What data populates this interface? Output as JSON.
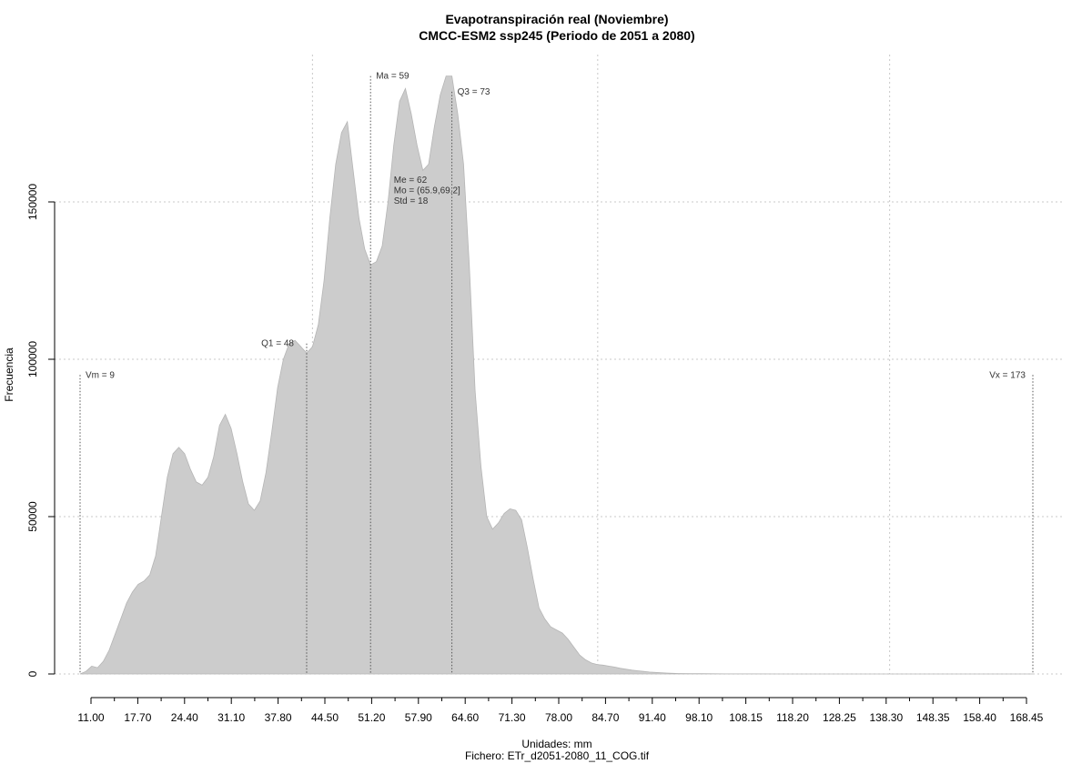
{
  "chart_data": {
    "type": "area",
    "title": "Evapotranspiración real (Noviembre)",
    "subtitle": "CMCC-ESM2 ssp245 (Periodo de 2051 a 2080)",
    "xlabel": "Unidades: mm",
    "caption": "Fichero: ETr_d2051-2080_11_COG.tif",
    "ylabel": "Frecuencia",
    "xlim": [
      7,
      175
    ],
    "ylim": [
      0,
      190000
    ],
    "grid": true,
    "fill_color": "#cccccc",
    "x_ticks": [
      "11.00",
      "17.70",
      "24.40",
      "31.10",
      "37.80",
      "44.50",
      "51.20",
      "57.90",
      "64.60",
      "71.30",
      "78.00",
      "84.70",
      "91.40",
      "98.10",
      "108.15",
      "118.20",
      "128.25",
      "138.30",
      "148.35",
      "158.40",
      "168.45"
    ],
    "y_ticks": [
      "0",
      "50000",
      "100000",
      "150000"
    ],
    "x_grid": [
      49,
      98.1,
      148.35
    ],
    "series": [
      {
        "x": [
          9,
          10,
          11,
          12,
          13,
          14,
          15,
          16,
          17,
          18,
          19,
          20,
          21,
          22,
          23,
          24,
          25,
          26,
          27,
          28,
          29,
          30,
          31,
          32,
          33,
          34,
          35,
          36,
          37,
          38,
          39,
          40,
          41,
          42,
          43,
          44,
          45,
          46,
          47,
          48,
          49,
          50,
          51,
          52,
          53,
          54,
          55,
          56,
          57,
          58,
          59,
          60,
          61,
          62,
          63,
          64,
          65,
          66,
          67,
          68,
          69,
          70,
          71,
          72,
          73,
          74,
          75,
          76,
          77,
          78,
          79,
          80,
          81,
          82,
          83,
          84,
          85,
          86,
          87,
          88,
          89,
          90,
          91,
          92,
          93,
          94,
          95,
          96,
          97,
          98,
          99,
          100,
          101,
          102,
          103,
          104,
          105,
          106,
          107,
          108,
          109,
          110,
          111,
          112,
          114,
          116,
          118,
          120,
          125,
          130,
          140,
          150,
          160,
          170,
          173
        ],
        "y": [
          0,
          800,
          2500,
          2000,
          4000,
          7500,
          12500,
          17500,
          22500,
          26000,
          28500,
          29500,
          31500,
          37500,
          50000,
          62500,
          70000,
          72000,
          70000,
          65000,
          61000,
          60000,
          62500,
          69000,
          79000,
          82500,
          78000,
          70000,
          61000,
          54000,
          52000,
          55000,
          64000,
          77000,
          91000,
          100000,
          105000,
          106000,
          104000,
          102000,
          104000,
          111000,
          125000,
          145000,
          162000,
          172000,
          175500,
          160000,
          145000,
          135000,
          130000,
          131000,
          136000,
          150000,
          168000,
          182000,
          186000,
          178000,
          168000,
          160000,
          162000,
          174000,
          184000,
          190000,
          190000,
          178000,
          162000,
          130000,
          90000,
          66000,
          50000,
          46000,
          48000,
          51000,
          52500,
          52000,
          49000,
          40000,
          30000,
          21000,
          17500,
          15000,
          14000,
          13000,
          11000,
          8500,
          6000,
          4500,
          3500,
          3000,
          2800,
          2500,
          2200,
          1800,
          1500,
          1200,
          1000,
          800,
          600,
          500,
          400,
          300,
          200,
          150,
          100,
          80,
          50,
          30,
          20,
          10,
          5,
          0,
          0,
          0,
          0
        ]
      }
    ],
    "annotations": [
      {
        "label": "Vm = 9",
        "x": 9,
        "y": 95000
      },
      {
        "label": "Q1 = 48",
        "x": 48,
        "y": 105000
      },
      {
        "label": "Ma = 59",
        "x": 59,
        "y": 190000
      },
      {
        "label": "Q3 = 73",
        "x": 73,
        "y": 185000
      },
      {
        "label": "Vx = 173",
        "x": 173,
        "y": 95000
      },
      {
        "label_lines": [
          "Me = 62",
          "Mo = (65.9,69.2]",
          "Std = 18"
        ],
        "x": 63,
        "y": 156000
      }
    ]
  }
}
